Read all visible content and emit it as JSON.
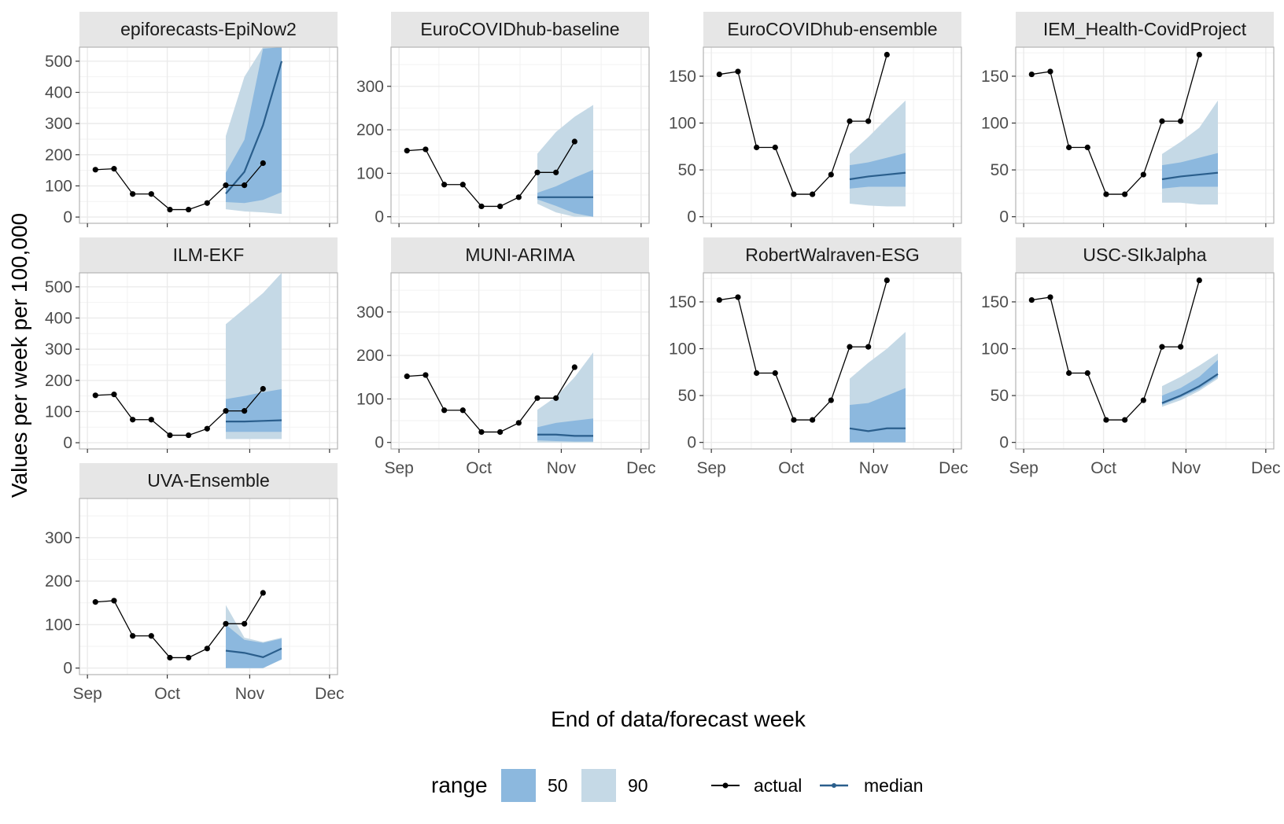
{
  "chart_data": {
    "type": "line",
    "xlabel": "End of data/forecast week",
    "ylabel": "Values per week per 100,000",
    "x_tick_labels": [
      "Sep",
      "Oct",
      "Nov",
      "Dec"
    ],
    "x_tick_dates": [
      "2021-09-01",
      "2021-10-01",
      "2021-11-01",
      "2021-12-01"
    ],
    "xlim": [
      "2021-08-29",
      "2021-12-04"
    ],
    "grid": true,
    "legend": {
      "placement": "bottom",
      "range_title": "range",
      "ranges": [
        {
          "label": "50",
          "color": "#8cb8de"
        },
        {
          "label": "90",
          "color": "#c5d9e6"
        }
      ],
      "lines": [
        {
          "label": "actual",
          "color": "#000000"
        },
        {
          "label": "median",
          "color": "#2a5e8c"
        }
      ]
    },
    "colors": {
      "actual": "#000000",
      "median": "#2a5e8c",
      "band50": "#8cb8de",
      "band90": "#c5d9e6",
      "strip": "#e6e6e6",
      "grid": "#ebebeb"
    },
    "actual": {
      "dates": [
        "2021-09-04",
        "2021-09-11",
        "2021-09-18",
        "2021-09-25",
        "2021-10-02",
        "2021-10-09",
        "2021-10-16",
        "2021-10-23",
        "2021-10-30",
        "2021-11-06"
      ],
      "values": [
        152,
        155,
        74,
        74,
        24,
        24,
        45,
        102,
        102,
        173
      ]
    },
    "forecast_dates": [
      "2021-10-23",
      "2021-10-30",
      "2021-11-06",
      "2021-11-13"
    ],
    "panels": [
      {
        "title": "epiforecasts-EpiNow2",
        "ylim": [
          -20,
          545
        ],
        "yticks": [
          0,
          100,
          200,
          300,
          400,
          500
        ],
        "median": [
          75,
          145,
          295,
          500
        ],
        "q50": [
          [
            48,
            142
          ],
          [
            45,
            248
          ],
          [
            55,
            540
          ],
          [
            80,
            545
          ]
        ],
        "q90": [
          [
            25,
            260
          ],
          [
            18,
            450
          ],
          [
            15,
            545
          ],
          [
            10,
            545
          ]
        ]
      },
      {
        "title": "EuroCOVIDhub-baseline",
        "ylim": [
          -15,
          390
        ],
        "yticks": [
          0,
          100,
          200,
          300
        ],
        "median": [
          45,
          45,
          45,
          45
        ],
        "q50": [
          [
            40,
            55
          ],
          [
            25,
            70
          ],
          [
            8,
            90
          ],
          [
            0,
            108
          ]
        ],
        "q90": [
          [
            30,
            145
          ],
          [
            10,
            195
          ],
          [
            0,
            230
          ],
          [
            0,
            257
          ]
        ]
      },
      {
        "title": "EuroCOVIDhub-ensemble",
        "ylim": [
          -7,
          181
        ],
        "yticks": [
          0,
          50,
          100,
          150
        ],
        "median": [
          40,
          43,
          45,
          47
        ],
        "q50": [
          [
            30,
            55
          ],
          [
            32,
            58
          ],
          [
            32,
            63
          ],
          [
            32,
            68
          ]
        ],
        "q90": [
          [
            14,
            67
          ],
          [
            12,
            85
          ],
          [
            11,
            105
          ],
          [
            11,
            124
          ]
        ]
      },
      {
        "title": "IEM_Health-CovidProject",
        "ylim": [
          -7,
          181
        ],
        "yticks": [
          0,
          50,
          100,
          150
        ],
        "median": [
          40,
          43,
          45,
          47
        ],
        "q50": [
          [
            30,
            55
          ],
          [
            32,
            58
          ],
          [
            32,
            63
          ],
          [
            32,
            68
          ]
        ],
        "q90": [
          [
            15,
            67
          ],
          [
            15,
            80
          ],
          [
            13,
            95
          ],
          [
            13,
            124
          ]
        ]
      },
      {
        "title": "ILM-EKF",
        "ylim": [
          -20,
          545
        ],
        "yticks": [
          0,
          100,
          200,
          300,
          400,
          500
        ],
        "median": [
          68,
          68,
          70,
          72
        ],
        "q50": [
          [
            35,
            140
          ],
          [
            35,
            150
          ],
          [
            35,
            162
          ],
          [
            35,
            172
          ]
        ],
        "q90": [
          [
            12,
            380
          ],
          [
            12,
            430
          ],
          [
            12,
            480
          ],
          [
            12,
            545
          ]
        ]
      },
      {
        "title": "MUNI-ARIMA",
        "ylim": [
          -15,
          390
        ],
        "yticks": [
          0,
          100,
          200,
          300
        ],
        "median": [
          18,
          18,
          15,
          15
        ],
        "q50": [
          [
            5,
            35
          ],
          [
            3,
            45
          ],
          [
            2,
            50
          ],
          [
            2,
            55
          ]
        ],
        "q90": [
          [
            0,
            75
          ],
          [
            0,
            105
          ],
          [
            0,
            150
          ],
          [
            0,
            207
          ]
        ]
      },
      {
        "title": "RobertWalraven-ESG",
        "ylim": [
          -7,
          181
        ],
        "yticks": [
          0,
          50,
          100,
          150
        ],
        "median": [
          15,
          12,
          15,
          15
        ],
        "q50": [
          [
            0,
            40
          ],
          [
            0,
            42
          ],
          [
            0,
            50
          ],
          [
            0,
            58
          ]
        ],
        "q90": [
          [
            0,
            68
          ],
          [
            0,
            85
          ],
          [
            0,
            100
          ],
          [
            0,
            118
          ]
        ]
      },
      {
        "title": "USC-SIkJalpha",
        "ylim": [
          -7,
          181
        ],
        "yticks": [
          0,
          50,
          100,
          150
        ],
        "median": [
          42,
          50,
          60,
          73
        ],
        "q50": [
          [
            40,
            50
          ],
          [
            48,
            58
          ],
          [
            57,
            70
          ],
          [
            70,
            88
          ]
        ],
        "q90": [
          [
            38,
            60
          ],
          [
            45,
            70
          ],
          [
            55,
            82
          ],
          [
            68,
            95
          ]
        ]
      },
      {
        "title": "UVA-Ensemble",
        "ylim": [
          -15,
          390
        ],
        "yticks": [
          0,
          100,
          200,
          300
        ],
        "median": [
          40,
          35,
          25,
          45
        ],
        "q50": [
          [
            0,
            100
          ],
          [
            0,
            65
          ],
          [
            0,
            58
          ],
          [
            20,
            68
          ]
        ],
        "q90": [
          [
            0,
            145
          ],
          [
            0,
            70
          ],
          [
            0,
            60
          ],
          [
            20,
            70
          ]
        ]
      }
    ]
  }
}
